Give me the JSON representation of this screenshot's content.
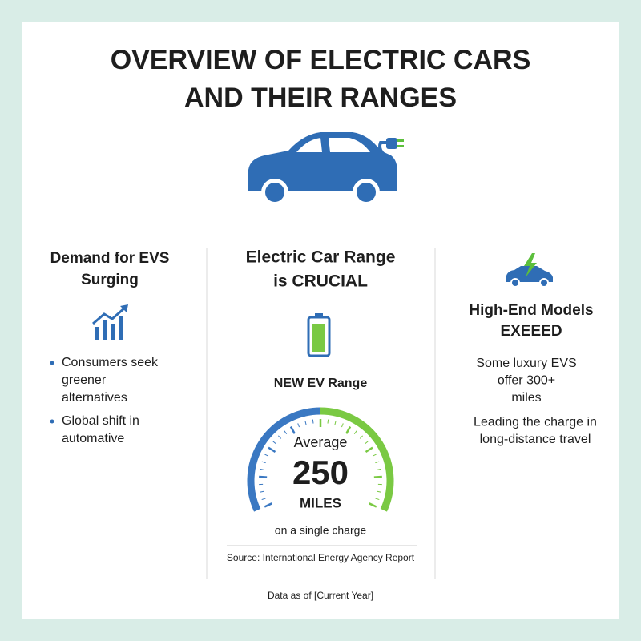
{
  "header": {
    "title_lines": [
      "OVERVIEW OF ELECTRIC CARS",
      "AND THEIR RANGES"
    ]
  },
  "left": {
    "heading_lines": [
      "Demand for EVS",
      "Surging"
    ],
    "bullets": [
      [
        "Consumers seek",
        "greener",
        "alternatives"
      ],
      [
        "Global shift in",
        "automative"
      ]
    ]
  },
  "center": {
    "heading_lines": [
      "Electric Car Range",
      "is CRUCIAL"
    ],
    "gauge_title": "NEW EV Range",
    "gauge_caption": "Average",
    "gauge_value": 250,
    "gauge_unit": "MILES",
    "note": "on a single charge",
    "source": "Source: International Energy Agency Report"
  },
  "right": {
    "heading_lines": [
      "High-End Models",
      "EXEEED"
    ],
    "paragraphs": [
      [
        "Some luxury EVS",
        "offer 300+",
        "miles"
      ],
      [
        "Leading the charge in",
        "long-distance travel"
      ]
    ]
  },
  "footer": {
    "note": "Data as of [Current Year]"
  }
}
